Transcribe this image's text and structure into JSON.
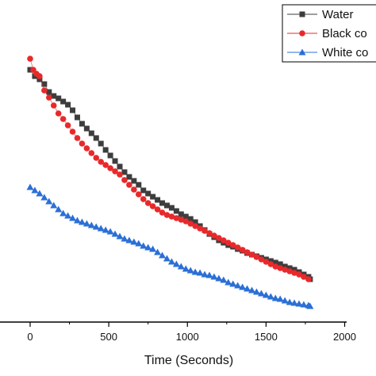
{
  "chart_data": {
    "type": "scatter",
    "title": "",
    "xlabel": "Time (Seconds)",
    "ylabel": "",
    "xlim": [
      -180,
      2000
    ],
    "x_ticks": [
      0,
      500,
      1000,
      1500,
      2000
    ],
    "x_tick_labels": [
      "0",
      "500",
      "1000",
      "1500",
      "2000"
    ],
    "grid": false,
    "legend_position": "top-right",
    "series": [
      {
        "name": "Water",
        "marker": "square",
        "color": "#3d3d3d",
        "points": [
          [
            0,
            88
          ],
          [
            30,
            96
          ],
          [
            60,
            100
          ],
          [
            90,
            106
          ],
          [
            120,
            116
          ],
          [
            150,
            121
          ],
          [
            180,
            124
          ],
          [
            210,
            128
          ],
          [
            240,
            132
          ],
          [
            270,
            139
          ],
          [
            300,
            148
          ],
          [
            330,
            156
          ],
          [
            360,
            162
          ],
          [
            390,
            168
          ],
          [
            420,
            174
          ],
          [
            450,
            181
          ],
          [
            480,
            189
          ],
          [
            510,
            196
          ],
          [
            540,
            203
          ],
          [
            570,
            210
          ],
          [
            600,
            217
          ],
          [
            630,
            223
          ],
          [
            660,
            228
          ],
          [
            690,
            233
          ],
          [
            720,
            240
          ],
          [
            750,
            244
          ],
          [
            780,
            248
          ],
          [
            810,
            252
          ],
          [
            840,
            256
          ],
          [
            870,
            259
          ],
          [
            900,
            262
          ],
          [
            930,
            266
          ],
          [
            960,
            270
          ],
          [
            990,
            273
          ],
          [
            1020,
            276
          ],
          [
            1050,
            280
          ],
          [
            1080,
            285
          ],
          [
            1110,
            290
          ],
          [
            1140,
            295
          ],
          [
            1170,
            299
          ],
          [
            1200,
            303
          ],
          [
            1230,
            306
          ],
          [
            1260,
            309
          ],
          [
            1290,
            311
          ],
          [
            1320,
            314
          ],
          [
            1350,
            316
          ],
          [
            1380,
            319
          ],
          [
            1410,
            321
          ],
          [
            1440,
            323
          ],
          [
            1470,
            325
          ],
          [
            1500,
            327
          ],
          [
            1530,
            329
          ],
          [
            1560,
            331
          ],
          [
            1590,
            333
          ],
          [
            1620,
            336
          ],
          [
            1650,
            338
          ],
          [
            1680,
            340
          ],
          [
            1710,
            343
          ],
          [
            1740,
            346
          ],
          [
            1770,
            349
          ],
          [
            1780,
            352
          ]
        ]
      },
      {
        "name": "Black co",
        "marker": "circle",
        "color": "#e8292b",
        "points": [
          [
            0,
            74
          ],
          [
            20,
            88
          ],
          [
            40,
            93
          ],
          [
            60,
            96
          ],
          [
            90,
            114
          ],
          [
            120,
            123
          ],
          [
            150,
            133
          ],
          [
            180,
            143
          ],
          [
            210,
            150
          ],
          [
            240,
            158
          ],
          [
            270,
            166
          ],
          [
            300,
            174
          ],
          [
            330,
            181
          ],
          [
            360,
            187
          ],
          [
            390,
            193
          ],
          [
            420,
            199
          ],
          [
            450,
            204
          ],
          [
            480,
            208
          ],
          [
            510,
            212
          ],
          [
            540,
            216
          ],
          [
            570,
            220
          ],
          [
            600,
            227
          ],
          [
            630,
            233
          ],
          [
            660,
            239
          ],
          [
            690,
            245
          ],
          [
            720,
            251
          ],
          [
            750,
            256
          ],
          [
            780,
            260
          ],
          [
            810,
            264
          ],
          [
            840,
            268
          ],
          [
            870,
            271
          ],
          [
            900,
            273
          ],
          [
            930,
            275
          ],
          [
            960,
            277
          ],
          [
            990,
            279
          ],
          [
            1020,
            282
          ],
          [
            1050,
            285
          ],
          [
            1080,
            288
          ],
          [
            1110,
            291
          ],
          [
            1140,
            294
          ],
          [
            1170,
            297
          ],
          [
            1200,
            300
          ],
          [
            1230,
            303
          ],
          [
            1260,
            306
          ],
          [
            1290,
            309
          ],
          [
            1320,
            312
          ],
          [
            1350,
            315
          ],
          [
            1380,
            318
          ],
          [
            1410,
            321
          ],
          [
            1440,
            324
          ],
          [
            1470,
            327
          ],
          [
            1500,
            330
          ],
          [
            1530,
            333
          ],
          [
            1560,
            336
          ],
          [
            1590,
            338
          ],
          [
            1620,
            340
          ],
          [
            1650,
            342
          ],
          [
            1680,
            344
          ],
          [
            1710,
            346
          ],
          [
            1740,
            349
          ],
          [
            1770,
            352
          ]
        ]
      },
      {
        "name": "White co",
        "marker": "triangle",
        "color": "#2b6fd6",
        "points": [
          [
            0,
            236
          ],
          [
            30,
            240
          ],
          [
            60,
            244
          ],
          [
            90,
            249
          ],
          [
            120,
            254
          ],
          [
            150,
            259
          ],
          [
            180,
            264
          ],
          [
            210,
            269
          ],
          [
            240,
            272
          ],
          [
            270,
            275
          ],
          [
            300,
            278
          ],
          [
            330,
            280
          ],
          [
            360,
            282
          ],
          [
            390,
            284
          ],
          [
            420,
            286
          ],
          [
            450,
            288
          ],
          [
            480,
            290
          ],
          [
            510,
            292
          ],
          [
            540,
            295
          ],
          [
            570,
            298
          ],
          [
            600,
            301
          ],
          [
            630,
            303
          ],
          [
            660,
            305
          ],
          [
            690,
            307
          ],
          [
            720,
            310
          ],
          [
            750,
            312
          ],
          [
            780,
            314
          ],
          [
            810,
            318
          ],
          [
            840,
            322
          ],
          [
            870,
            326
          ],
          [
            900,
            330
          ],
          [
            930,
            333
          ],
          [
            960,
            336
          ],
          [
            990,
            339
          ],
          [
            1020,
            341
          ],
          [
            1050,
            343
          ],
          [
            1080,
            344
          ],
          [
            1110,
            346
          ],
          [
            1140,
            347
          ],
          [
            1170,
            349
          ],
          [
            1200,
            351
          ],
          [
            1230,
            353
          ],
          [
            1260,
            356
          ],
          [
            1290,
            358
          ],
          [
            1320,
            360
          ],
          [
            1350,
            362
          ],
          [
            1380,
            364
          ],
          [
            1410,
            366
          ],
          [
            1440,
            368
          ],
          [
            1470,
            370
          ],
          [
            1500,
            372
          ],
          [
            1530,
            374
          ],
          [
            1560,
            376
          ],
          [
            1590,
            377
          ],
          [
            1620,
            379
          ],
          [
            1650,
            381
          ],
          [
            1680,
            382
          ],
          [
            1710,
            383
          ],
          [
            1740,
            384
          ],
          [
            1770,
            385
          ],
          [
            1780,
            386
          ]
        ]
      }
    ]
  }
}
